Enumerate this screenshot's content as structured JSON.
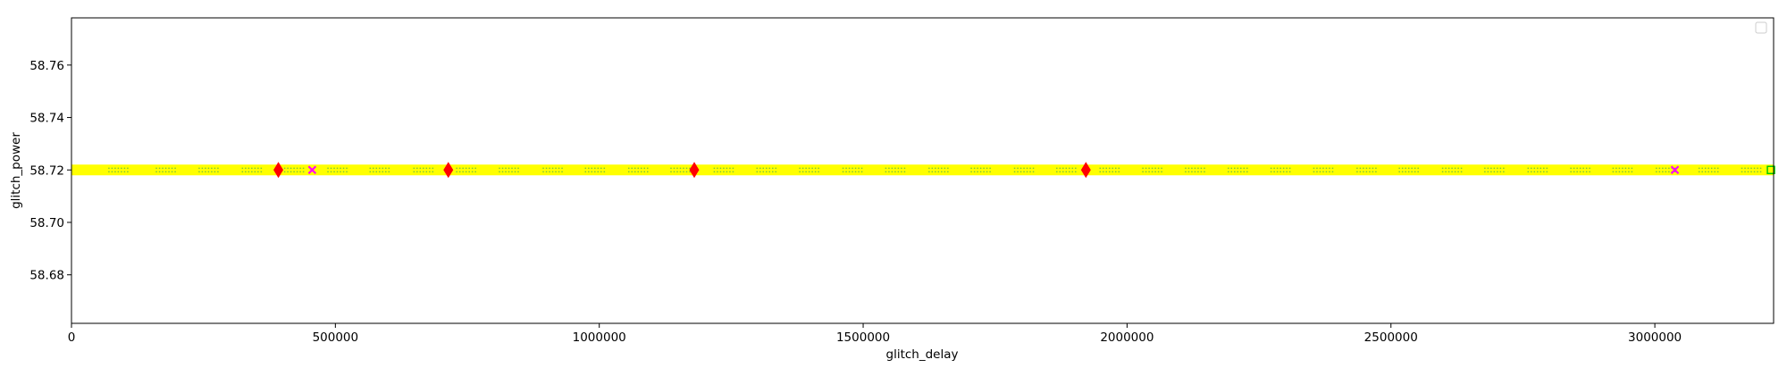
{
  "chart_data": {
    "type": "scatter",
    "xlabel": "glitch_delay",
    "ylabel": "glitch_power",
    "xlim": [
      0,
      3225000
    ],
    "ylim": [
      58.6615,
      58.778
    ],
    "xticks": [
      0,
      500000,
      1000000,
      1500000,
      2000000,
      2500000,
      3000000
    ],
    "xtick_labels": [
      "0",
      "500000",
      "1000000",
      "1500000",
      "2000000",
      "2500000",
      "3000000"
    ],
    "yticks": [
      58.68,
      58.7,
      58.72,
      58.74,
      58.76
    ],
    "ytick_labels": [
      "58.68",
      "58.70",
      "58.72",
      "58.74",
      "58.76"
    ],
    "grid": false,
    "legend": {
      "placement": "top-right",
      "entries": []
    },
    "band": {
      "y": 58.72,
      "x_start": 0,
      "x_end": 3225000,
      "color": "#ffff00"
    },
    "series": [
      {
        "marker": "diamond",
        "color": "#ff0000",
        "x": [
          392000,
          714000,
          1180000,
          1922000
        ],
        "y": [
          58.72,
          58.72,
          58.72,
          58.72
        ]
      },
      {
        "marker": "x",
        "color": "#ff00ff",
        "x": [
          456000,
          3038000
        ],
        "y": [
          58.72,
          58.72
        ]
      },
      {
        "marker": "square",
        "color": "#00cc00",
        "x": [
          3220000
        ],
        "y": [
          58.72
        ]
      }
    ],
    "dotted_x_centers": [
      90000,
      180000,
      261000,
      343000,
      423000,
      505000,
      585000,
      668000,
      749000,
      830000,
      913000,
      993000,
      1075000,
      1155000,
      1237000,
      1318000,
      1399000,
      1481000,
      1562000,
      1644000,
      1724000,
      1806000,
      1886000,
      1968000,
      2049000,
      2130000,
      2211000,
      2292000,
      2373000,
      2455000,
      2535000,
      2617000,
      2697000,
      2779000,
      2860000,
      2940000,
      3022000,
      3103000,
      3184000
    ]
  }
}
